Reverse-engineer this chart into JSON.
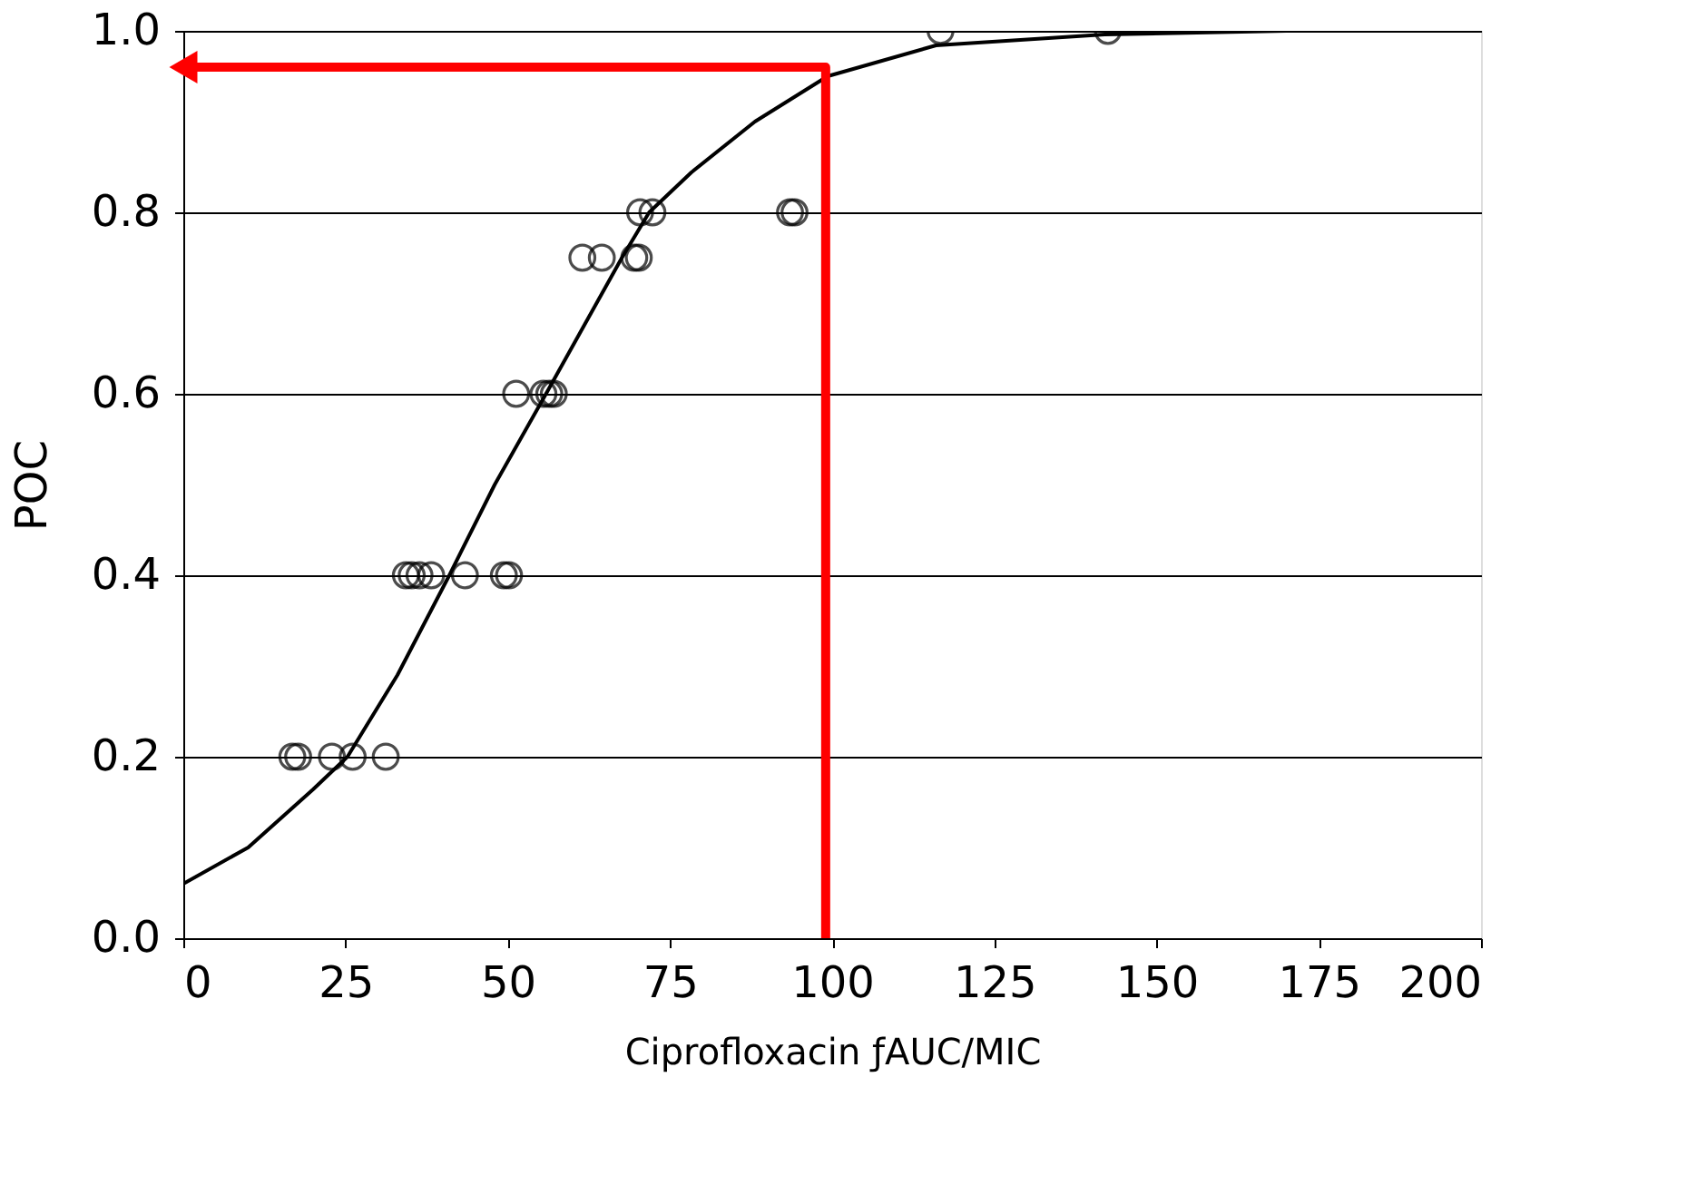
{
  "chart_data": {
    "type": "scatter",
    "xlabel": "Ciprofloxacin ƒAUC/MIC",
    "ylabel": "POC",
    "xlim": [
      0,
      200
    ],
    "xticks": [
      0,
      25,
      50,
      75,
      100,
      125,
      150,
      175,
      200
    ],
    "ylim": [
      0,
      1
    ],
    "yticks": [
      {
        "value": 0,
        "label": "0.0"
      },
      0.2,
      0.4,
      0.6,
      0.8,
      {
        "value": 1,
        "label": "1.0"
      }
    ],
    "grid": "y",
    "series": [
      {
        "marker": "circle",
        "color": "#000000",
        "x": [
          16.8,
          17.7,
          22.9,
          26.1,
          31.2,
          34.3,
          35.2,
          36.4,
          38.2,
          43.4,
          49.4,
          50.2,
          51.3,
          55.5,
          56.4,
          57.1,
          61.5,
          64.5,
          69.5,
          70.2,
          70.4,
          72.3,
          93.5,
          94.2,
          116.7,
          142.5
        ],
        "values": [
          0.2,
          0.2,
          0.2,
          0.2,
          0.2,
          0.4,
          0.4,
          0.4,
          0.4,
          0.4,
          0.4,
          0.4,
          0.6,
          0.6,
          0.6,
          0.6,
          0.75,
          0.75,
          0.75,
          0.75,
          0.8,
          0.8,
          0.8,
          0.8,
          1.0,
          1.0
        ]
      },
      {
        "type": "line",
        "marker": "none",
        "line_style": "solid",
        "color": "#000000",
        "x": [
          0,
          10,
          20,
          25.3,
          33,
          41,
          48,
          55.9,
          67.6,
          71.8,
          78.3,
          88.1,
          99.3,
          116,
          142,
          170,
          200
        ],
        "values": [
          0.06,
          0.1,
          0.164,
          0.2,
          0.29,
          0.4,
          0.5,
          0.6,
          0.75,
          0.8,
          0.844,
          0.9,
          0.95,
          0.984,
          0.996,
          1.0,
          1.0
        ]
      },
      {
        "type": "line",
        "marker": "none",
        "line_style": "solid",
        "color": "#ff0000",
        "x": [
          99,
          99,
          0
        ],
        "values": [
          0,
          0.96,
          0.96
        ]
      }
    ]
  }
}
